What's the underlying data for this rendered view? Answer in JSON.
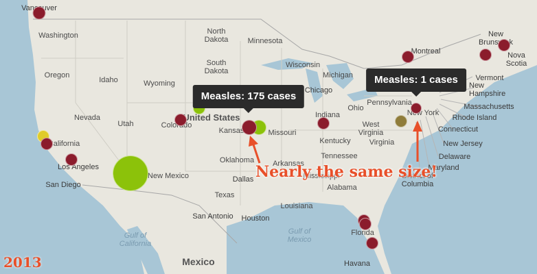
{
  "tooltips": {
    "left": "Measles: 175 cases",
    "right": "Measles: 1 cases"
  },
  "annotation": "Nearly the same size!",
  "year": "2013",
  "colors": {
    "accent": "#e8502a",
    "dark_marker": "#8b1c2c",
    "green_marker": "#8cc20a",
    "yellow_marker": "#e0cc2a",
    "olive_marker": "#8f7c3a",
    "tooltip_bg": "#2b2b2b"
  },
  "labels": {
    "vancouver": "Vancouver",
    "washington": "Washington",
    "oregon": "Oregon",
    "idaho": "Idaho",
    "wyoming": "Wyoming",
    "nevada": "Nevada",
    "utah": "Utah",
    "colorado": "Colorado",
    "california": "California",
    "los_angeles": "Los Angeles",
    "san_diego": "San Diego",
    "new_mexico": "New Mexico",
    "north_dakota": "North Dakota",
    "south_dakota": "South Dakota",
    "minnesota": "Minnesota",
    "wisconsin": "Wisconsin",
    "michigan": "Michigan",
    "chicago": "Chicago",
    "united_states": "United States",
    "kansas": "Kansas",
    "missouri": "Missouri",
    "oklahoma": "Oklahoma",
    "arkansas": "Arkansas",
    "dallas": "Dallas",
    "texas": "Texas",
    "san_antonio": "San Antonio",
    "houston": "Houston",
    "louisiana": "Louisiana",
    "mississippi": "Mississippi",
    "alabama": "Alabama",
    "indiana": "Indiana",
    "ohio": "Ohio",
    "kentucky": "Kentucky",
    "tennessee": "Tennessee",
    "virginia": "Virginia",
    "west_virginia": "West Virginia",
    "pennsylvania": "Pennsylvania",
    "new_york": "New York",
    "montreal": "Montreal",
    "vermont": "Vermont",
    "new_hampshire": "New Hampshire",
    "massachusetts": "Massachusetts",
    "rhode_island": "Rhode Island",
    "connecticut": "Connecticut",
    "new_jersey": "New Jersey",
    "delaware": "Delaware",
    "maryland": "Maryland",
    "dc": "District of Columbia",
    "new_brunswick": "New Brunswick",
    "nova_scotia": "Nova Scotia",
    "florida": "Florida",
    "gulf_california": "Gulf of California",
    "gulf_mexico": "Gulf of Mexico",
    "mexico": "Mexico",
    "havana": "Havana"
  }
}
